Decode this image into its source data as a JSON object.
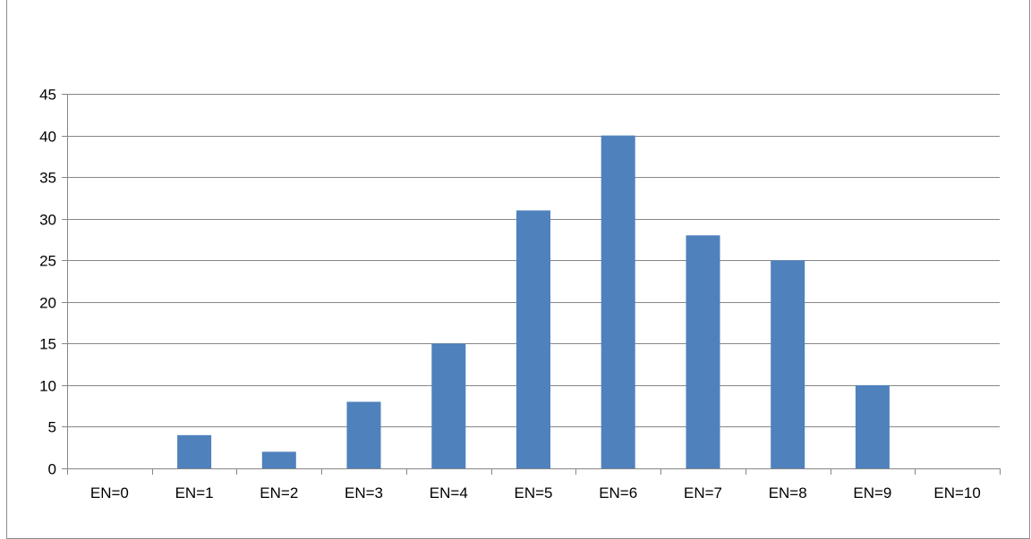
{
  "chart_data": {
    "type": "bar",
    "title": "",
    "xlabel": "",
    "ylabel": "",
    "categories": [
      "EN=0",
      "EN=1",
      "EN=2",
      "EN=3",
      "EN=4",
      "EN=5",
      "EN=6",
      "EN=7",
      "EN=8",
      "EN=9",
      "EN=10"
    ],
    "values": [
      0,
      4,
      2,
      8,
      15,
      31,
      40,
      28,
      25,
      10,
      0
    ],
    "ylim": [
      0,
      45
    ],
    "yticks": [
      0,
      5,
      10,
      15,
      20,
      25,
      30,
      35,
      40,
      45
    ],
    "grid": true,
    "legend": false,
    "colors": {
      "bar": "#4f81bd",
      "grid": "#868686",
      "axis": "#868686"
    }
  }
}
